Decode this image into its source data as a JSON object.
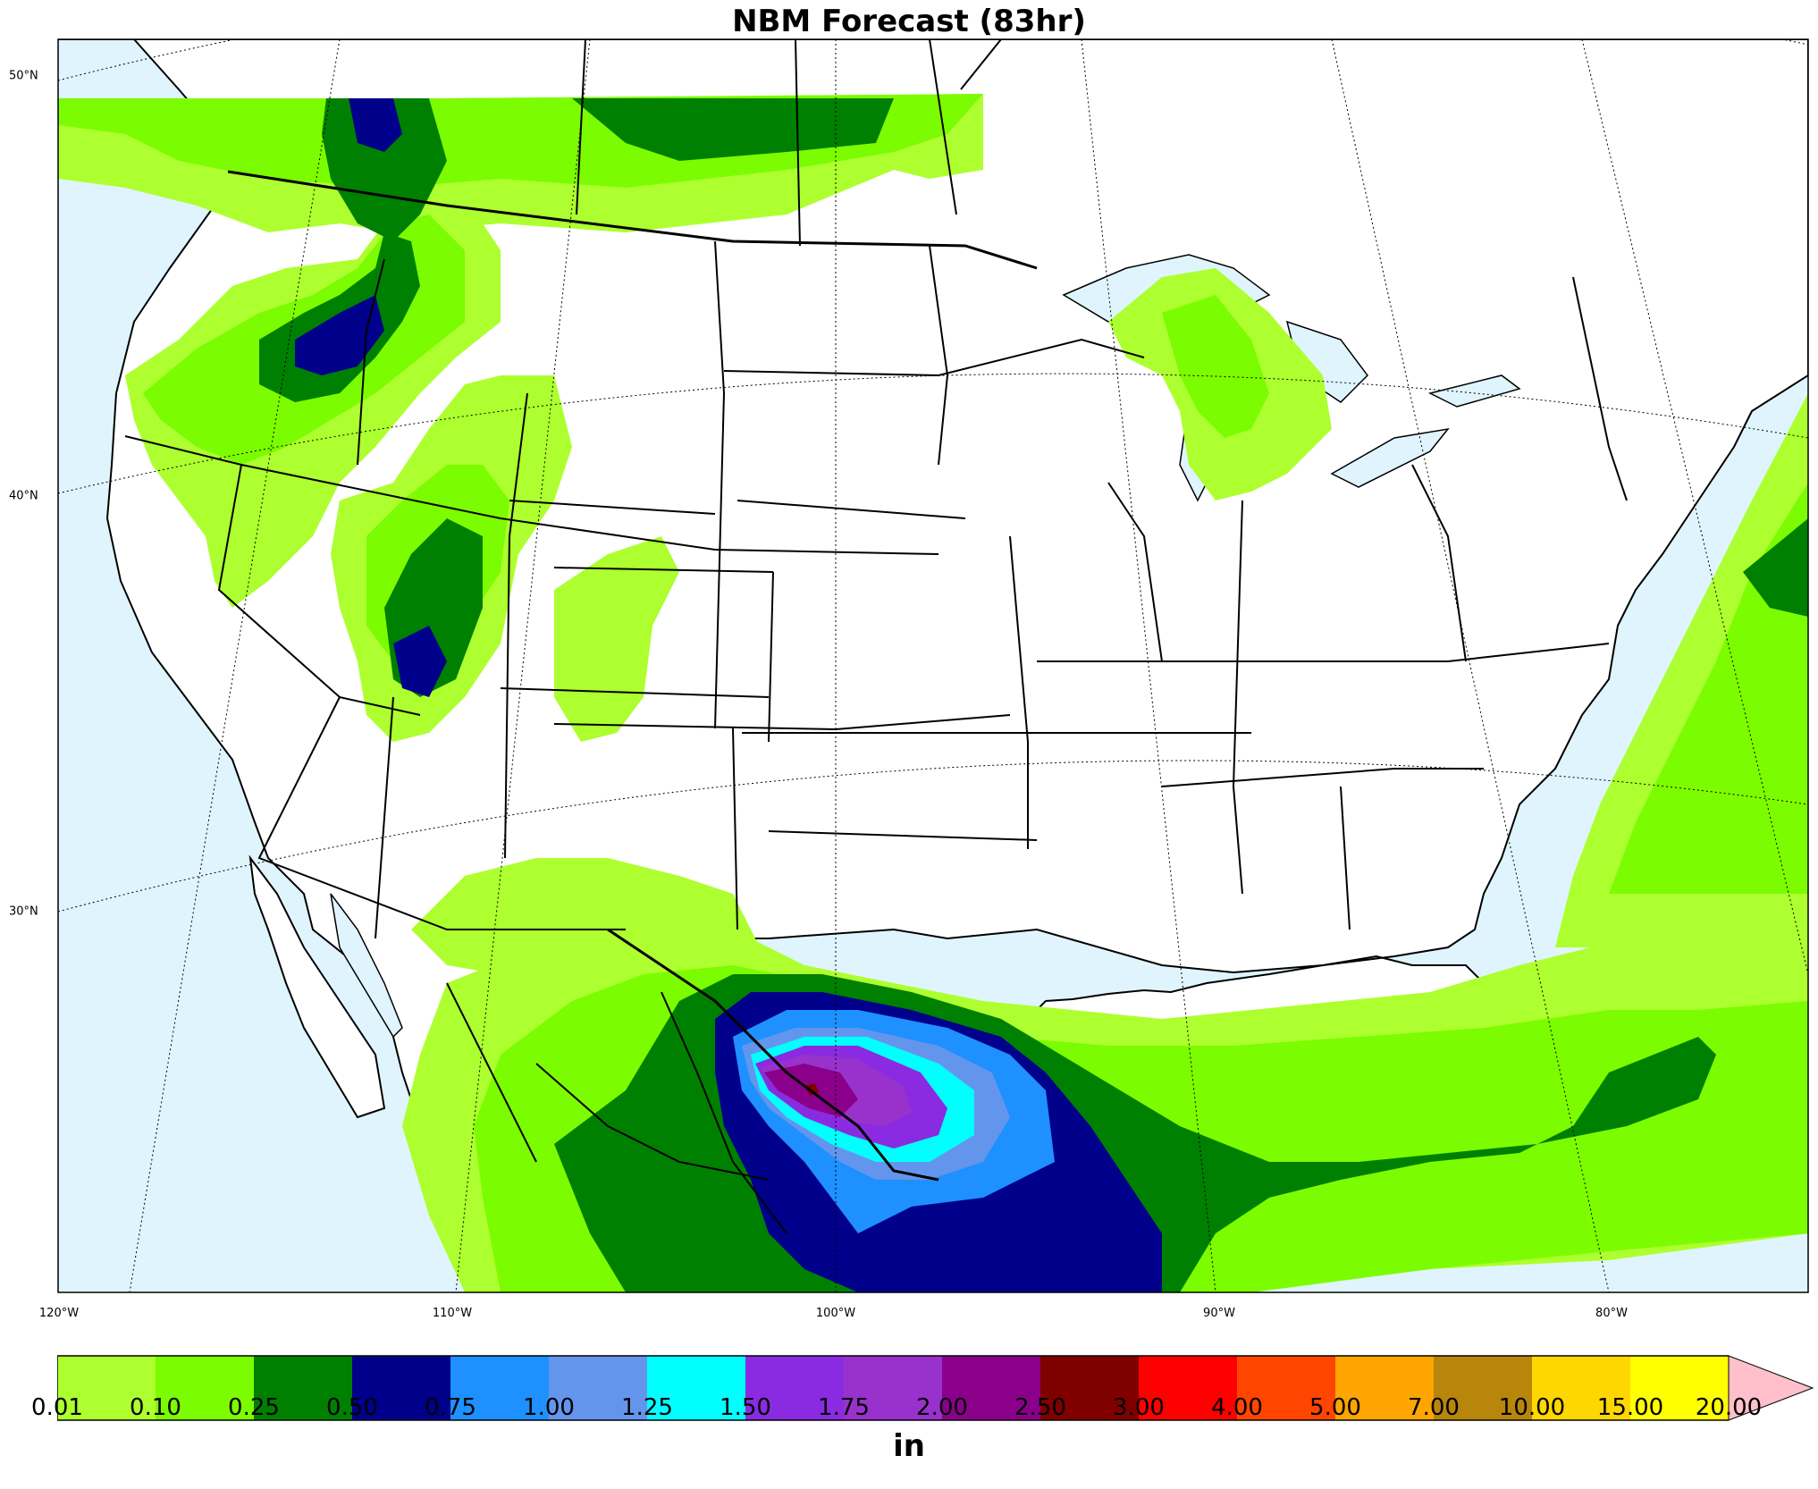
{
  "title": "NBM Forecast (83hr)",
  "units": "in",
  "lat_labels": [
    "50°N",
    "40°N",
    "30°N"
  ],
  "lon_labels": [
    "120°W",
    "110°W",
    "100°W",
    "90°W",
    "80°W"
  ],
  "colors": {
    "ocean": "#dff4fc",
    "land": "#ffffff",
    "border": "#000000",
    "overflow": "#ffc0cb"
  },
  "colorbar": {
    "ticks": [
      "0.01",
      "0.10",
      "0.25",
      "0.50",
      "0.75",
      "1.00",
      "1.25",
      "1.50",
      "1.75",
      "2.00",
      "2.50",
      "3.00",
      "4.00",
      "5.00",
      "7.00",
      "10.00",
      "15.00",
      "20.00"
    ],
    "colors": [
      "#adff2f",
      "#7cfc00",
      "#008000",
      "#00008b",
      "#1e90ff",
      "#6495ed",
      "#00ffff",
      "#8a2be2",
      "#9932cc",
      "#8b008b",
      "#800000",
      "#ff0000",
      "#ff4500",
      "#ffa500",
      "#b8860b",
      "#ffd700",
      "#ffff00"
    ]
  },
  "precip_levels": [
    {
      "level": "0.01",
      "color": "#adff2f"
    },
    {
      "level": "0.10",
      "color": "#7cfc00"
    },
    {
      "level": "0.25",
      "color": "#008000"
    },
    {
      "level": "0.50",
      "color": "#00008b"
    },
    {
      "level": "0.75",
      "color": "#1e90ff"
    },
    {
      "level": "1.00",
      "color": "#6495ed"
    },
    {
      "level": "1.25",
      "color": "#00ffff"
    },
    {
      "level": "1.50",
      "color": "#8a2be2"
    },
    {
      "level": "2.00",
      "color": "#8b008b"
    },
    {
      "level": "2.50",
      "color": "#800000"
    }
  ]
}
